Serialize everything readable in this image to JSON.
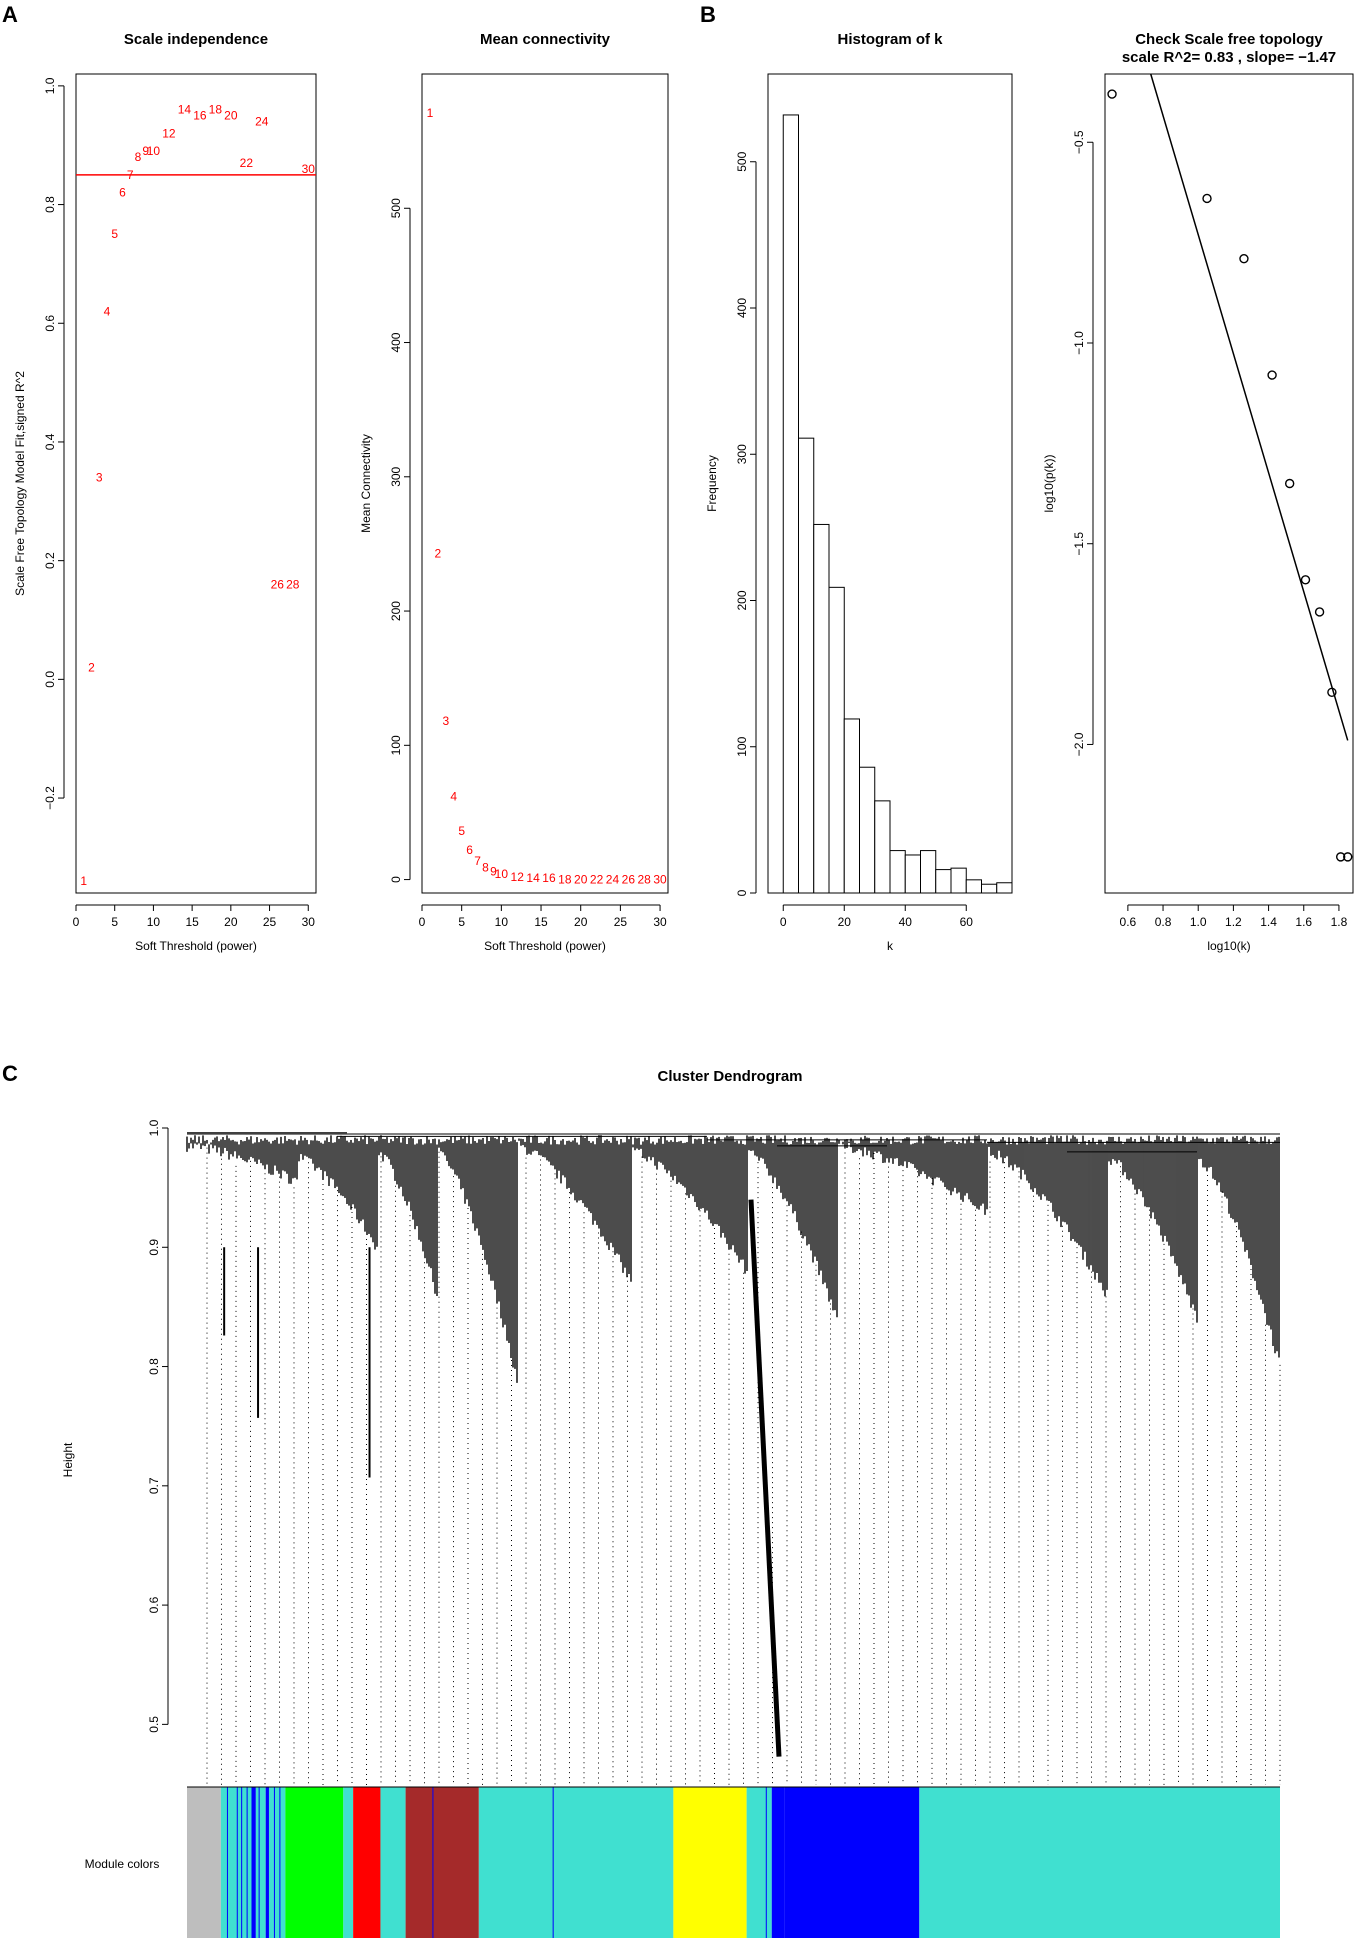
{
  "panel_labels": [
    "A",
    "B",
    "C"
  ],
  "colors": {
    "label_red": "#ff0000",
    "grey": "#bebebe",
    "turquoise": "#40e0d0",
    "blue": "#0000ff",
    "green": "#00ff00",
    "red": "#ff0000",
    "brown": "#a52a2a",
    "yellow": "#ffff00"
  },
  "chart_data": [
    {
      "type": "scatter",
      "title": "Scale independence",
      "xlabel": "Soft Threshold (power)",
      "ylabel": "Scale Free Topology Model Fit,signed R^2",
      "xlim": [
        0,
        31
      ],
      "ylim": [
        -0.36,
        1.02
      ],
      "xticks": [
        0,
        5,
        10,
        15,
        20,
        25,
        30
      ],
      "yticks": [
        -0.2,
        0.0,
        0.2,
        0.4,
        0.6,
        0.8,
        1.0
      ],
      "ytick_labels": [
        "−0.2",
        "0.0",
        "0.2",
        "0.4",
        "0.6",
        "0.8",
        "1.0"
      ],
      "markers": "text labels (power) in red",
      "points": [
        {
          "x": 1,
          "y": -0.34,
          "label": "1"
        },
        {
          "x": 2,
          "y": 0.02,
          "label": "2"
        },
        {
          "x": 3,
          "y": 0.34,
          "label": "3"
        },
        {
          "x": 4,
          "y": 0.62,
          "label": "4"
        },
        {
          "x": 5,
          "y": 0.75,
          "label": "5"
        },
        {
          "x": 6,
          "y": 0.82,
          "label": "6"
        },
        {
          "x": 7,
          "y": 0.85,
          "label": "7"
        },
        {
          "x": 8,
          "y": 0.88,
          "label": "8"
        },
        {
          "x": 9,
          "y": 0.89,
          "label": "9"
        },
        {
          "x": 10,
          "y": 0.89,
          "label": "10"
        },
        {
          "x": 12,
          "y": 0.92,
          "label": "12"
        },
        {
          "x": 14,
          "y": 0.96,
          "label": "14"
        },
        {
          "x": 16,
          "y": 0.95,
          "label": "16"
        },
        {
          "x": 18,
          "y": 0.96,
          "label": "18"
        },
        {
          "x": 20,
          "y": 0.95,
          "label": "20"
        },
        {
          "x": 22,
          "y": 0.87,
          "label": "22"
        },
        {
          "x": 24,
          "y": 0.94,
          "label": "24"
        },
        {
          "x": 26,
          "y": 0.16,
          "label": "26"
        },
        {
          "x": 28,
          "y": 0.16,
          "label": "28"
        },
        {
          "x": 30,
          "y": 0.86,
          "label": "30"
        }
      ],
      "hline": 0.85
    },
    {
      "type": "scatter",
      "title": "Mean connectivity",
      "xlabel": "Soft Threshold (power)",
      "ylabel": "Mean Connectivity",
      "xlim": [
        0,
        31
      ],
      "ylim": [
        -10,
        600
      ],
      "xticks": [
        0,
        5,
        10,
        15,
        20,
        25,
        30
      ],
      "yticks": [
        0,
        100,
        200,
        300,
        400,
        500
      ],
      "markers": "text labels (power) in red",
      "points": [
        {
          "x": 1,
          "y": 571,
          "label": "1"
        },
        {
          "x": 2,
          "y": 243,
          "label": "2"
        },
        {
          "x": 3,
          "y": 118,
          "label": "3"
        },
        {
          "x": 4,
          "y": 62,
          "label": "4"
        },
        {
          "x": 5,
          "y": 36,
          "label": "5"
        },
        {
          "x": 6,
          "y": 22,
          "label": "6"
        },
        {
          "x": 7,
          "y": 14,
          "label": "7"
        },
        {
          "x": 8,
          "y": 9,
          "label": "8"
        },
        {
          "x": 9,
          "y": 6,
          "label": "9"
        },
        {
          "x": 10,
          "y": 4,
          "label": "10"
        },
        {
          "x": 12,
          "y": 2,
          "label": "12"
        },
        {
          "x": 14,
          "y": 1,
          "label": "14"
        },
        {
          "x": 16,
          "y": 1,
          "label": "16"
        },
        {
          "x": 18,
          "y": 0,
          "label": "18"
        },
        {
          "x": 20,
          "y": 0,
          "label": "20"
        },
        {
          "x": 22,
          "y": 0,
          "label": "22"
        },
        {
          "x": 24,
          "y": 0,
          "label": "24"
        },
        {
          "x": 26,
          "y": 0,
          "label": "26"
        },
        {
          "x": 28,
          "y": 0,
          "label": "28"
        },
        {
          "x": 30,
          "y": 0,
          "label": "30"
        }
      ]
    },
    {
      "type": "bar",
      "title": "Histogram of k",
      "xlabel": "k",
      "ylabel": "Frequency",
      "xlim": [
        -5,
        75
      ],
      "ylim": [
        0,
        560
      ],
      "xticks": [
        0,
        20,
        40,
        60
      ],
      "yticks": [
        0,
        100,
        200,
        300,
        400,
        500
      ],
      "bin_edges": [
        0,
        5,
        10,
        15,
        20,
        25,
        30,
        35,
        40,
        45,
        50,
        55,
        60,
        65,
        70
      ],
      "values": [
        532,
        311,
        252,
        209,
        119,
        86,
        63,
        29,
        26,
        29,
        16,
        17,
        9,
        6,
        7
      ]
    },
    {
      "type": "scatter",
      "title": "Check Scale free topology",
      "subtitle": "scale R^2= 0.83 , slope= −1.47",
      "xlabel": "log10(k)",
      "ylabel": "log10(p(k))",
      "xlim": [
        0.47,
        1.88
      ],
      "ylim": [
        -2.37,
        -0.33
      ],
      "xticks": [
        0.6,
        0.8,
        1.0,
        1.2,
        1.4,
        1.6,
        1.8
      ],
      "yticks": [
        -2.0,
        -1.5,
        -1.0,
        -0.5
      ],
      "ytick_labels": [
        "−2.0",
        "−1.5",
        "−1.0",
        "−0.5"
      ],
      "points": [
        {
          "x": 0.51,
          "y": -0.38
        },
        {
          "x": 1.05,
          "y": -0.64
        },
        {
          "x": 1.26,
          "y": -0.79
        },
        {
          "x": 1.42,
          "y": -1.08
        },
        {
          "x": 1.52,
          "y": -1.35
        },
        {
          "x": 1.61,
          "y": -1.59
        },
        {
          "x": 1.69,
          "y": -1.67
        },
        {
          "x": 1.76,
          "y": -1.87
        },
        {
          "x": 1.81,
          "y": -2.28
        },
        {
          "x": 1.85,
          "y": -2.28
        }
      ],
      "fit_line": {
        "x": [
          0.73,
          1.85
        ],
        "y": [
          -0.33,
          -1.99
        ]
      }
    },
    {
      "type": "dendrogram",
      "title": "Cluster Dendrogram",
      "ylabel": "Height",
      "ylim": [
        0.45,
        1.0
      ],
      "yticks": [
        0.5,
        0.6,
        0.7,
        0.8,
        0.9,
        1.0
      ],
      "color_bar_label": "Module colors",
      "module_segments": [
        {
          "color": "grey",
          "start": 0.0,
          "end": 0.031
        },
        {
          "color": "turquoise",
          "start": 0.031,
          "end": 0.059
        },
        {
          "color": "blue",
          "start": 0.059,
          "end": 0.063
        },
        {
          "color": "turquoise",
          "start": 0.063,
          "end": 0.072
        },
        {
          "color": "blue",
          "start": 0.072,
          "end": 0.075
        },
        {
          "color": "turquoise",
          "start": 0.075,
          "end": 0.09
        },
        {
          "color": "green",
          "start": 0.09,
          "end": 0.143
        },
        {
          "color": "turquoise",
          "start": 0.143,
          "end": 0.152
        },
        {
          "color": "red",
          "start": 0.152,
          "end": 0.177
        },
        {
          "color": "turquoise",
          "start": 0.177,
          "end": 0.2
        },
        {
          "color": "brown",
          "start": 0.2,
          "end": 0.267
        },
        {
          "color": "turquoise",
          "start": 0.267,
          "end": 0.445
        },
        {
          "color": "yellow",
          "start": 0.445,
          "end": 0.512
        },
        {
          "color": "turquoise",
          "start": 0.512,
          "end": 0.535
        },
        {
          "color": "blue",
          "start": 0.535,
          "end": 0.547
        },
        {
          "color": "blue",
          "start": 0.547,
          "end": 0.67
        },
        {
          "color": "turquoise",
          "start": 0.67,
          "end": 1.0
        }
      ],
      "notable_branches": [
        {
          "x_frac": 0.516,
          "min_height": 0.473
        },
        {
          "x_frac": 0.167,
          "min_height": 0.707
        },
        {
          "x_frac": 0.065,
          "min_height": 0.757
        },
        {
          "x_frac": 0.034,
          "min_height": 0.826
        }
      ]
    }
  ]
}
